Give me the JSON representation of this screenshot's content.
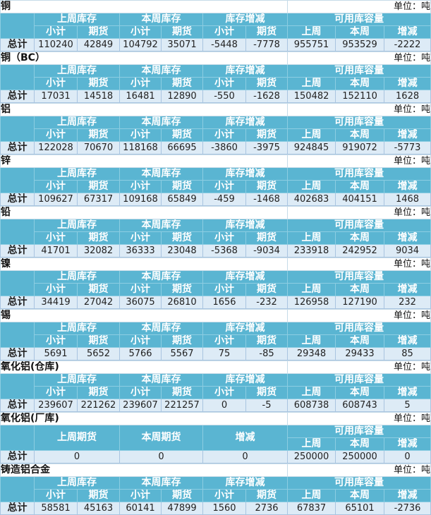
{
  "unit_label": "单位：吨",
  "total_label": "总计",
  "headers": {
    "last_stock": "上周库存",
    "this_stock": "本周库存",
    "change": "库存增减",
    "capacity": "可用库容量",
    "subtotal": "小计",
    "futures": "期货",
    "last_week": "上周",
    "this_week": "本周",
    "delta": "增减",
    "last_futures": "上周期货",
    "this_futures": "本周期货"
  },
  "colors": {
    "header": "#5ab5d2",
    "row": "#ddebf6"
  },
  "sections": [
    {
      "name": "铜",
      "values": [
        "110240",
        "42849",
        "104792",
        "35071",
        "-5448",
        "-7778",
        "955751",
        "953529",
        "-2222"
      ]
    },
    {
      "name": "铜（BC）",
      "values": [
        "17031",
        "14518",
        "16481",
        "12890",
        "-550",
        "-1628",
        "150482",
        "152110",
        "1628"
      ]
    },
    {
      "name": "铝",
      "values": [
        "122028",
        "70670",
        "118168",
        "66695",
        "-3860",
        "-3975",
        "924845",
        "919072",
        "-5773"
      ]
    },
    {
      "name": "锌",
      "values": [
        "109627",
        "67317",
        "109168",
        "65849",
        "-459",
        "-1468",
        "402683",
        "404151",
        "1468"
      ]
    },
    {
      "name": "铅",
      "values": [
        "41701",
        "32082",
        "36333",
        "23048",
        "-5368",
        "-9034",
        "233918",
        "242952",
        "9034"
      ]
    },
    {
      "name": "镍",
      "values": [
        "34419",
        "27042",
        "36075",
        "26810",
        "1656",
        "-232",
        "126958",
        "127190",
        "232"
      ]
    },
    {
      "name": "锡",
      "values": [
        "5691",
        "5652",
        "5766",
        "5567",
        "75",
        "-85",
        "29348",
        "29433",
        "85"
      ]
    },
    {
      "name": "氧化铝(仓库)",
      "values": [
        "239607",
        "221262",
        "239607",
        "221257",
        "0",
        "-5",
        "608738",
        "608743",
        "5"
      ]
    },
    {
      "name": "氧化铝(厂库)",
      "special": true,
      "values": [
        "0",
        "0",
        "0",
        "250000",
        "250000",
        "0"
      ]
    },
    {
      "name": "铸造铝合金",
      "values": [
        "58581",
        "45163",
        "60141",
        "47899",
        "1560",
        "2736",
        "67837",
        "65101",
        "-2736"
      ]
    }
  ]
}
